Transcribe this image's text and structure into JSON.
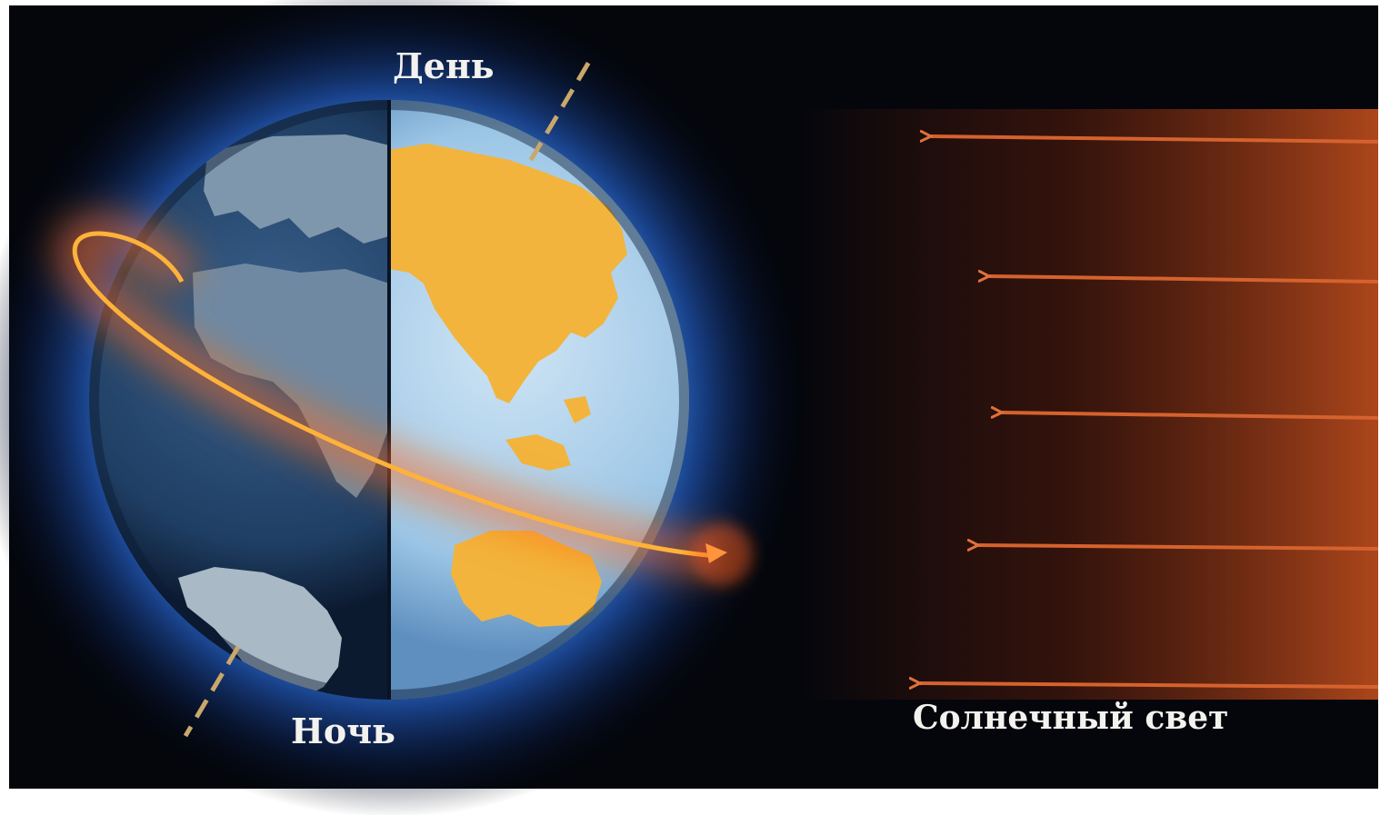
{
  "labels": {
    "day": "День",
    "night": "Ночь",
    "sunlight": "Солнечный свет"
  },
  "colors": {
    "space": "#04060c",
    "atmosphere_glow": "#2f6fd0",
    "ocean_day": "#9cc6e6",
    "land_day": "#f2b43c",
    "ocean_night": "#1f3e63",
    "land_night": "#7f97ad",
    "rotation_arrow": "#ffb23a",
    "sun_rays": "#d5622e",
    "sun_glow": "#8a2a0c",
    "axis": "#c9a86a"
  }
}
